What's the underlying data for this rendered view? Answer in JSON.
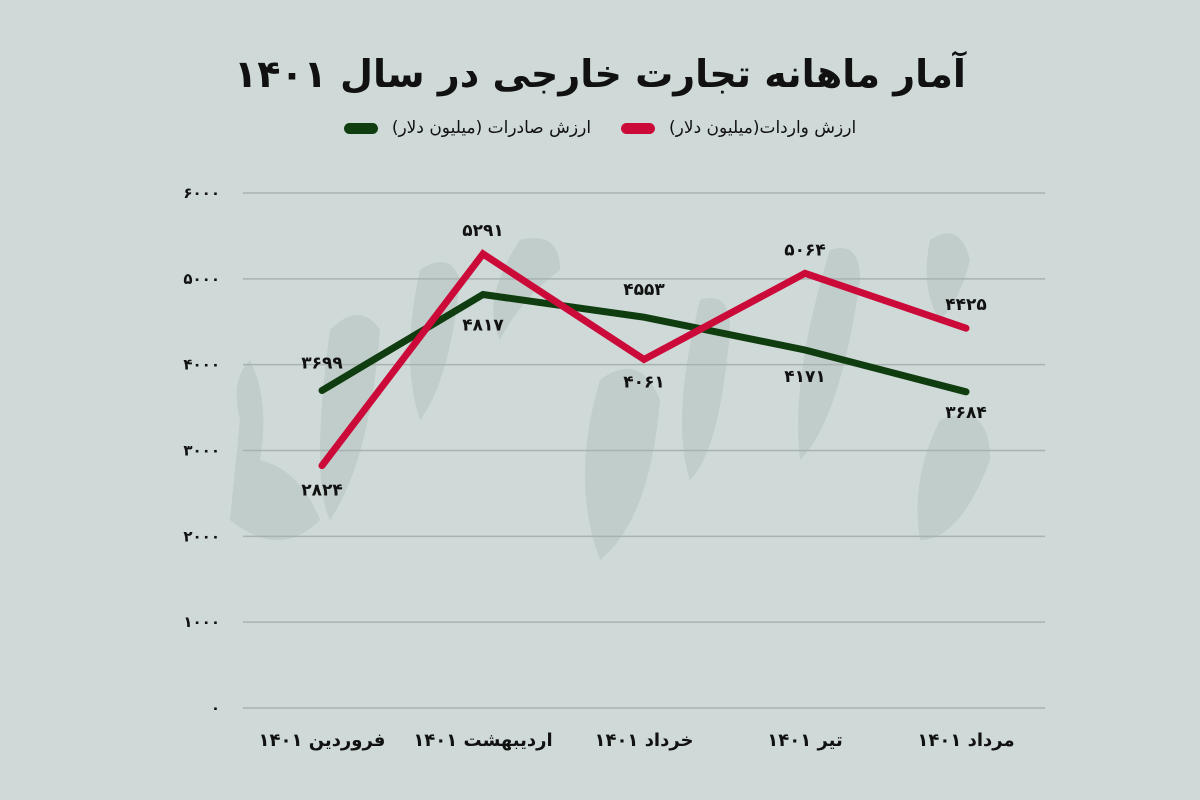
{
  "title": "آمار ماهانه تجارت خارجی در سال ۱۴۰۱",
  "legend": [
    {
      "label": "ارزش واردات(میلیون دلار)",
      "color": "#cc0a3a"
    },
    {
      "label": "ارزش صادرات (میلیون دلار)",
      "color": "#0f3d0f"
    }
  ],
  "colors": {
    "background": "#cfd9d8",
    "grid": "#a8b2b1",
    "imports": "#cc0a3a",
    "exports": "#0f3d0f",
    "watermark": "#bcc8c6"
  },
  "chart_data": {
    "type": "line",
    "title": "آمار ماهانه تجارت خارجی در سال ۱۴۰۱",
    "categories": [
      "فروردین ۱۴۰۱",
      "اردیبهشت ۱۴۰۱",
      "خرداد ۱۴۰۱",
      "تیر ۱۴۰۱",
      "مرداد ۱۴۰۱"
    ],
    "series": [
      {
        "name": "ارزش واردات(میلیون دلار)",
        "color": "#cc0a3a",
        "values": [
          2824,
          5291,
          4061,
          5064,
          4425
        ],
        "labels": [
          "۲۸۲۴",
          "۵۲۹۱",
          "۴۰۶۱",
          "۵۰۶۴",
          "۴۴۲۵"
        ]
      },
      {
        "name": "ارزش صادرات (میلیون دلار)",
        "color": "#0f3d0f",
        "values": [
          3699,
          4817,
          4553,
          4171,
          3684
        ],
        "labels": [
          "۳۶۹۹",
          "۴۸۱۷",
          "۴۵۵۳",
          "۴۱۷۱",
          "۳۶۸۴"
        ]
      }
    ],
    "yticks": [
      0,
      1000,
      2000,
      3000,
      4000,
      5000,
      6000
    ],
    "ytick_labels": [
      "۰",
      "۱۰۰۰",
      "۲۰۰۰",
      "۳۰۰۰",
      "۴۰۰۰",
      "۵۰۰۰",
      "۶۰۰۰"
    ],
    "ylim": [
      0,
      6000
    ],
    "xlabel": "",
    "ylabel": "",
    "grid": true,
    "legend_position": "top"
  }
}
